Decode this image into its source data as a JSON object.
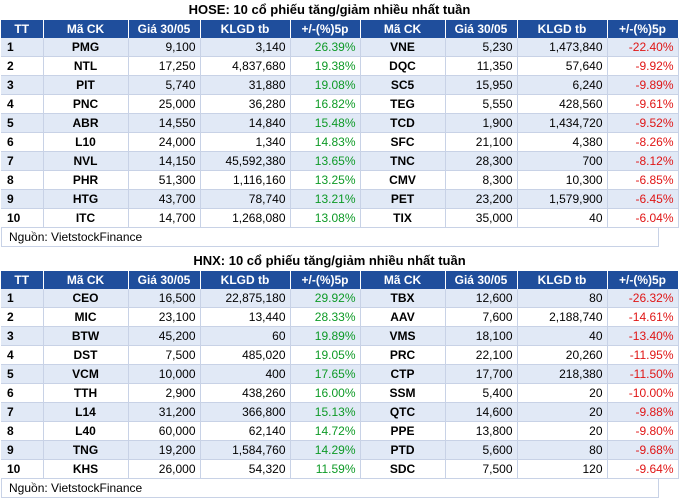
{
  "tables": [
    {
      "title": "HOSE: 10 cổ phiếu tăng/giảm nhiều nhất tuần",
      "headers": [
        "TT",
        "Mã CK",
        "Giá 30/05",
        "KLGD tb",
        "+/-(%)5p",
        "Mã CK",
        "Giá 30/05",
        "KLGD tb",
        "+/-(%)5p"
      ],
      "rows": [
        [
          "1",
          "PMG",
          "9,100",
          "3,140",
          "26.39%",
          "VNE",
          "5,230",
          "1,473,840",
          "-22.40%"
        ],
        [
          "2",
          "NTL",
          "17,250",
          "4,837,680",
          "19.38%",
          "DQC",
          "11,350",
          "57,640",
          "-9.92%"
        ],
        [
          "3",
          "PIT",
          "5,740",
          "31,880",
          "19.08%",
          "SC5",
          "15,950",
          "6,240",
          "-9.89%"
        ],
        [
          "4",
          "PNC",
          "25,000",
          "36,280",
          "16.82%",
          "TEG",
          "5,550",
          "428,560",
          "-9.61%"
        ],
        [
          "5",
          "ABR",
          "14,550",
          "14,840",
          "15.48%",
          "TCD",
          "1,900",
          "1,434,720",
          "-9.52%"
        ],
        [
          "6",
          "L10",
          "24,000",
          "1,340",
          "14.83%",
          "SFC",
          "21,100",
          "4,380",
          "-8.26%"
        ],
        [
          "7",
          "NVL",
          "14,150",
          "45,592,380",
          "13.65%",
          "TNC",
          "28,300",
          "700",
          "-8.12%"
        ],
        [
          "8",
          "PHR",
          "51,300",
          "1,116,160",
          "13.25%",
          "CMV",
          "8,300",
          "10,300",
          "-6.85%"
        ],
        [
          "9",
          "HTG",
          "43,700",
          "78,740",
          "13.21%",
          "PET",
          "23,200",
          "1,579,900",
          "-6.45%"
        ],
        [
          "10",
          "ITC",
          "14,700",
          "1,268,080",
          "13.08%",
          "TIX",
          "35,000",
          "40",
          "-6.04%"
        ]
      ],
      "source": "Nguồn: VietstockFinance"
    },
    {
      "title": "HNX: 10 cổ phiếu tăng/giảm nhiều nhất tuần",
      "headers": [
        "TT",
        "Mã CK",
        "Giá 30/05",
        "KLGD tb",
        "+/-(%)5p",
        "Mã CK",
        "Giá 30/05",
        "KLGD tb",
        "+/-(%)5p"
      ],
      "rows": [
        [
          "1",
          "CEO",
          "16,500",
          "22,875,180",
          "29.92%",
          "TBX",
          "12,600",
          "80",
          "-26.32%"
        ],
        [
          "2",
          "MIC",
          "23,100",
          "13,440",
          "28.33%",
          "AAV",
          "7,600",
          "2,188,740",
          "-14.61%"
        ],
        [
          "3",
          "BTW",
          "45,200",
          "60",
          "19.89%",
          "VMS",
          "18,100",
          "40",
          "-13.40%"
        ],
        [
          "4",
          "DST",
          "7,500",
          "485,020",
          "19.05%",
          "PRC",
          "22,100",
          "20,260",
          "-11.95%"
        ],
        [
          "5",
          "VCM",
          "10,000",
          "400",
          "17.65%",
          "CTP",
          "17,700",
          "218,380",
          "-11.50%"
        ],
        [
          "6",
          "TTH",
          "2,900",
          "438,260",
          "16.00%",
          "SSM",
          "5,400",
          "20",
          "-10.00%"
        ],
        [
          "7",
          "L14",
          "31,200",
          "366,800",
          "15.13%",
          "QTC",
          "14,600",
          "20",
          "-9.88%"
        ],
        [
          "8",
          "L40",
          "60,000",
          "62,140",
          "14.72%",
          "PPE",
          "13,800",
          "20",
          "-9.80%"
        ],
        [
          "9",
          "TNG",
          "19,200",
          "1,584,760",
          "14.29%",
          "PTD",
          "5,600",
          "80",
          "-9.68%"
        ],
        [
          "10",
          "KHS",
          "26,000",
          "54,320",
          "11.59%",
          "SDC",
          "7,500",
          "120",
          "-9.64%"
        ]
      ],
      "source": "Nguồn: VietstockFinance"
    }
  ],
  "colors": {
    "header_bg": "#1f4e9c",
    "row_alt": "#e1e9f6",
    "gain": "#0d9a26",
    "loss": "#e01515"
  }
}
